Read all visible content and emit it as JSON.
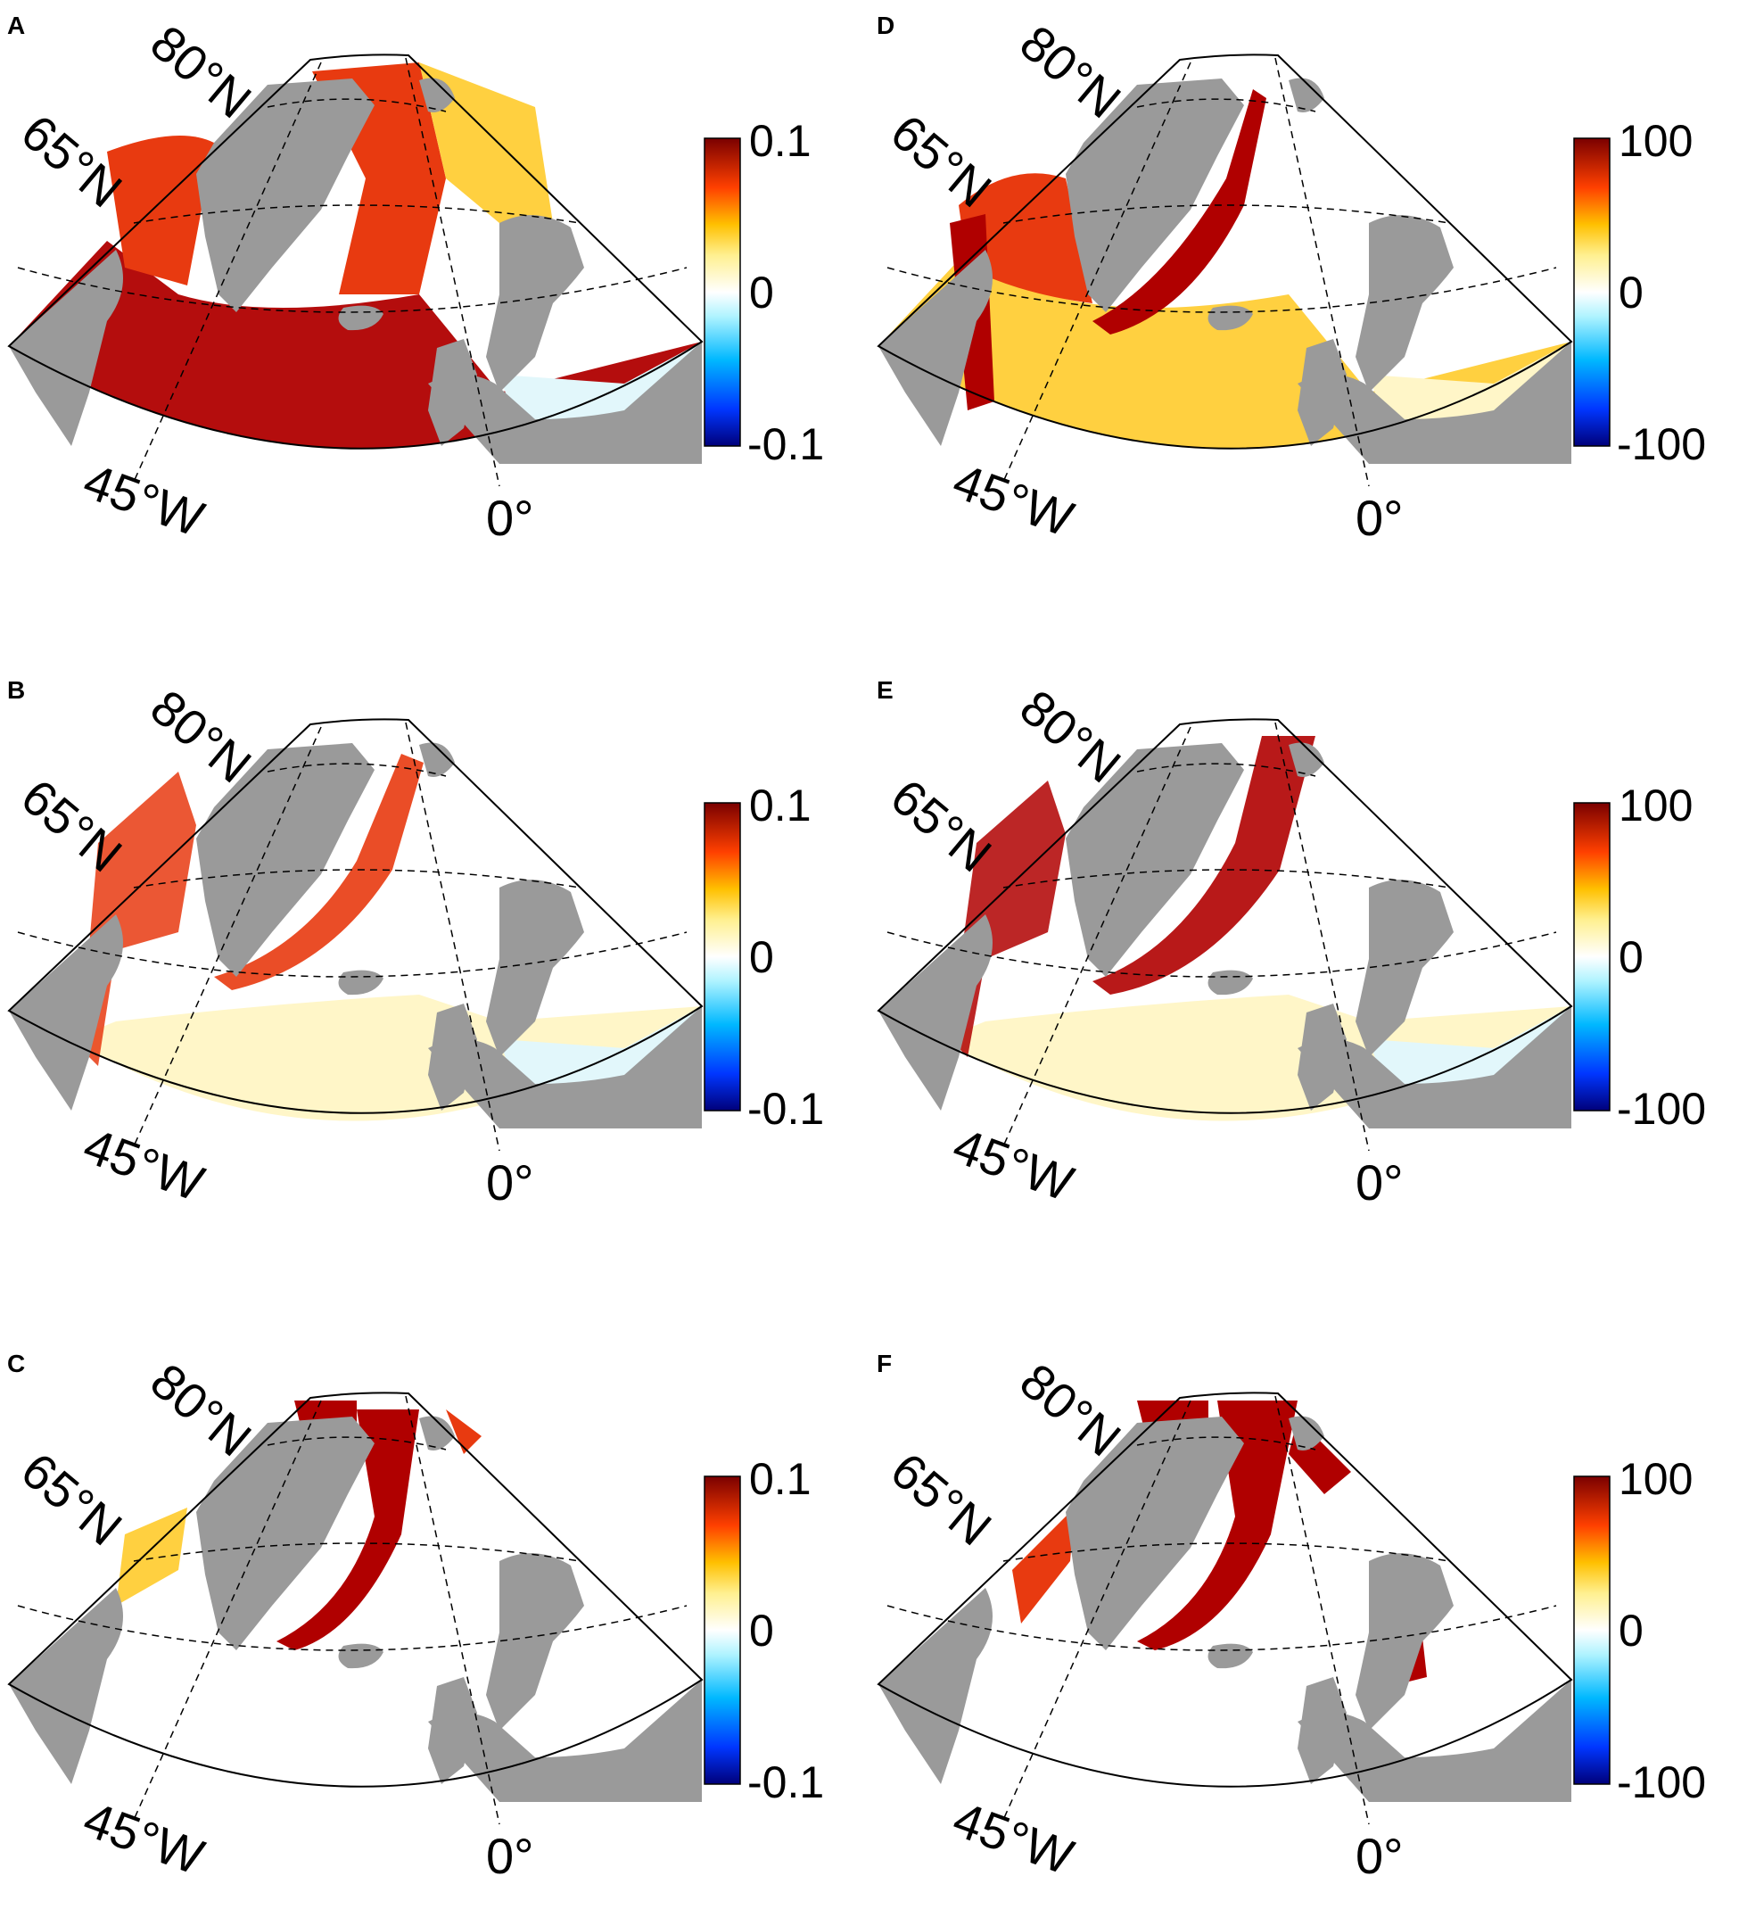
{
  "colors": {
    "land": "#9a9a9a",
    "ocean_base": "#ffffff",
    "strong_positive": "#b00000",
    "moderate_positive": "#e83a10",
    "weak_positive": "#ffd040",
    "very_weak_positive": "#fff6c8",
    "weak_negative": "#e2f7fb",
    "grid_line": "#000000"
  },
  "panels": [
    {
      "id": "A",
      "colorbar": {
        "max": "0.1",
        "mid": "0",
        "min": "-0.1"
      },
      "labels": {
        "lat_high": "80°N",
        "lat_mid": "65°N",
        "lon_west": "45°W",
        "lon_zero": "0°"
      }
    },
    {
      "id": "B",
      "colorbar": {
        "max": "0.1",
        "mid": "0",
        "min": "-0.1"
      },
      "labels": {
        "lat_high": "80°N",
        "lat_mid": "65°N",
        "lon_west": "45°W",
        "lon_zero": "0°"
      }
    },
    {
      "id": "C",
      "colorbar": {
        "max": "0.1",
        "mid": "0",
        "min": "-0.1"
      },
      "labels": {
        "lat_high": "80°N",
        "lat_mid": "65°N",
        "lon_west": "45°W",
        "lon_zero": "0°"
      }
    },
    {
      "id": "D",
      "colorbar": {
        "max": "100",
        "mid": "0",
        "min": "-100"
      },
      "labels": {
        "lat_high": "80°N",
        "lat_mid": "65°N",
        "lon_west": "45°W",
        "lon_zero": "0°"
      }
    },
    {
      "id": "E",
      "colorbar": {
        "max": "100",
        "mid": "0",
        "min": "-100"
      },
      "labels": {
        "lat_high": "80°N",
        "lat_mid": "65°N",
        "lon_west": "45°W",
        "lon_zero": "0°"
      }
    },
    {
      "id": "F",
      "colorbar": {
        "max": "100",
        "mid": "0",
        "min": "-100"
      },
      "labels": {
        "lat_high": "80°N",
        "lat_mid": "65°N",
        "lon_west": "45°W",
        "lon_zero": "0°"
      }
    }
  ]
}
